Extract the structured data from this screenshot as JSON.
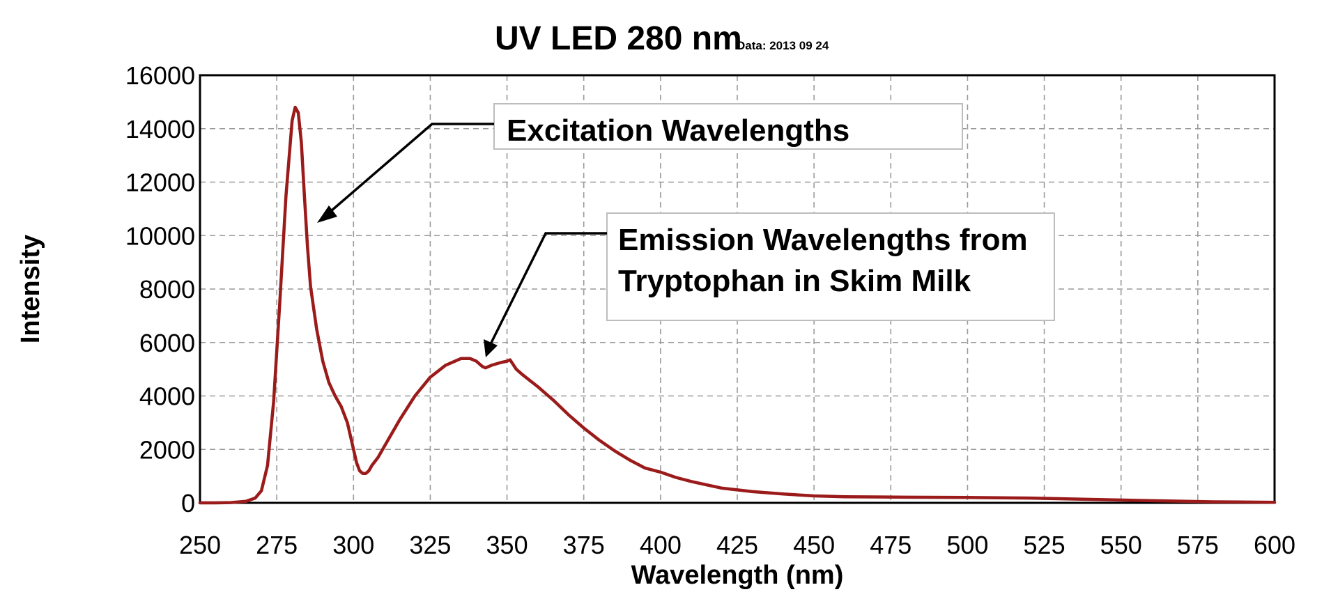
{
  "chart_data": {
    "type": "line",
    "title": "UV LED 280 nm",
    "subtitle": "Data: 2013 09 24",
    "xlabel": "Wavelength (nm)",
    "ylabel": "Intensity",
    "xlim": [
      250,
      600
    ],
    "ylim": [
      0,
      16000
    ],
    "x_ticks": [
      250,
      275,
      300,
      325,
      350,
      375,
      400,
      425,
      450,
      475,
      500,
      525,
      550,
      575,
      600
    ],
    "y_ticks": [
      0,
      2000,
      4000,
      6000,
      8000,
      10000,
      12000,
      14000,
      16000
    ],
    "grid": true,
    "series": [
      {
        "color": "#9b1b1b",
        "x": [
          250,
          255,
          260,
          265,
          268,
          270,
          272,
          274,
          276,
          278,
          280,
          281,
          282,
          283,
          284,
          285,
          286,
          288,
          290,
          292,
          294,
          296,
          298,
          300,
          301,
          302,
          303,
          304,
          305,
          306,
          308,
          310,
          315,
          320,
          325,
          330,
          335,
          338,
          340,
          342,
          343,
          345,
          348,
          350,
          351,
          353,
          355,
          360,
          365,
          370,
          375,
          380,
          385,
          390,
          395,
          400,
          405,
          410,
          420,
          430,
          440,
          450,
          460,
          480,
          500,
          520,
          540,
          560,
          580,
          600
        ],
        "y": [
          0,
          0,
          10,
          60,
          180,
          450,
          1400,
          3800,
          7500,
          11500,
          14300,
          14800,
          14600,
          13500,
          11500,
          9600,
          8100,
          6500,
          5300,
          4500,
          4000,
          3600,
          3000,
          2000,
          1500,
          1200,
          1100,
          1100,
          1200,
          1400,
          1700,
          2100,
          3100,
          4000,
          4700,
          5150,
          5400,
          5400,
          5300,
          5100,
          5050,
          5150,
          5250,
          5300,
          5350,
          5000,
          4800,
          4350,
          3850,
          3300,
          2800,
          2350,
          1950,
          1600,
          1300,
          1150,
          950,
          800,
          550,
          420,
          330,
          260,
          230,
          210,
          200,
          180,
          130,
          80,
          40,
          20
        ]
      }
    ],
    "annotations": [
      {
        "lines": [
          "Excitation Wavelengths"
        ],
        "arrow_to": [
          287,
          10200
        ]
      },
      {
        "lines": [
          "Emission Wavelengths from",
          "Tryptophan in Skim Milk"
        ],
        "arrow_to": [
          343,
          5400
        ]
      }
    ]
  }
}
